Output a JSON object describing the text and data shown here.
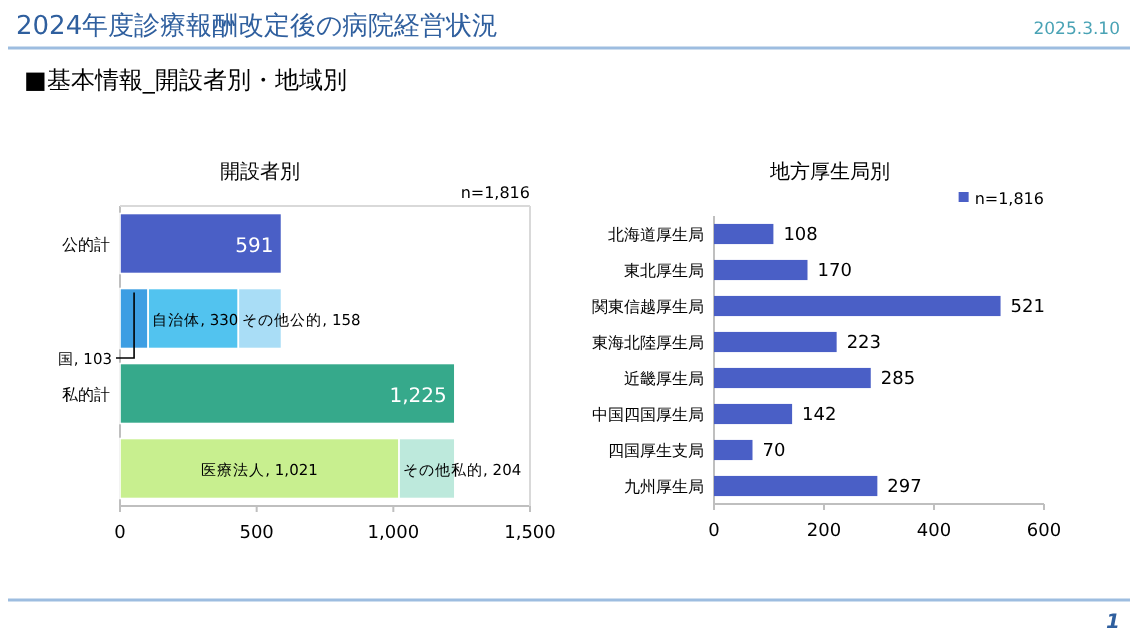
{
  "chart_data": [
    {
      "type": "other",
      "title": "2024年度診療報酬改定後の病院経営状況",
      "subtitle": "■基本情報_開設者別・地域別",
      "annotations": [
        "2025.3.10",
        "1"
      ]
    },
    {
      "type": "bar",
      "orientation": "horizontal",
      "stacked": true,
      "title": "開設者別",
      "categories": [
        "公的計",
        null,
        "私的計",
        null
      ],
      "series": [
        {
          "colors": [
            "#4a5fc6",
            "#3d9ee3",
            "#36a98b",
            "#c8ef8f"
          ],
          "values": [
            591,
            103,
            1225,
            1021
          ],
          "value_labels": [
            "591",
            "国, 103",
            "1,225",
            "医療法人, 1,021"
          ]
        },
        {
          "colors": [
            null,
            "#52c3ef",
            null,
            "#bde9dc"
          ],
          "values": [
            null,
            330,
            null,
            204
          ],
          "value_labels": [
            null,
            "自治体, 330",
            null,
            "その他私的, 204"
          ]
        },
        {
          "colors": [
            null,
            "#a9ddf6",
            null,
            null
          ],
          "values": [
            null,
            158,
            null,
            null
          ],
          "value_labels": [
            null,
            "その他公的, 158",
            null,
            null
          ]
        }
      ],
      "xlim": [
        0,
        1500
      ],
      "xticks": [
        0,
        500,
        {
          "value": 1000,
          "label": "1,000"
        },
        {
          "value": 1500,
          "label": "1,500"
        }
      ],
      "annotations": [
        "n=1,816"
      ],
      "legend": false
    },
    {
      "type": "bar",
      "orientation": "horizontal",
      "title": "地方厚生局別",
      "categories": [
        "北海道厚生局",
        "東北厚生局",
        "関東信越厚生局",
        "東海北陸厚生局",
        "近畿厚生局",
        "中国四国厚生局",
        "四国厚生支局",
        "九州厚生局"
      ],
      "series": [
        {
          "name": "n=1,816",
          "color": "#4a5fc6",
          "values": [
            108,
            170,
            521,
            223,
            285,
            142,
            70,
            297
          ]
        }
      ],
      "xlim": [
        0,
        600
      ],
      "xticks": [
        0,
        200,
        400,
        600
      ],
      "data_labels": true,
      "legend": "top right"
    }
  ]
}
